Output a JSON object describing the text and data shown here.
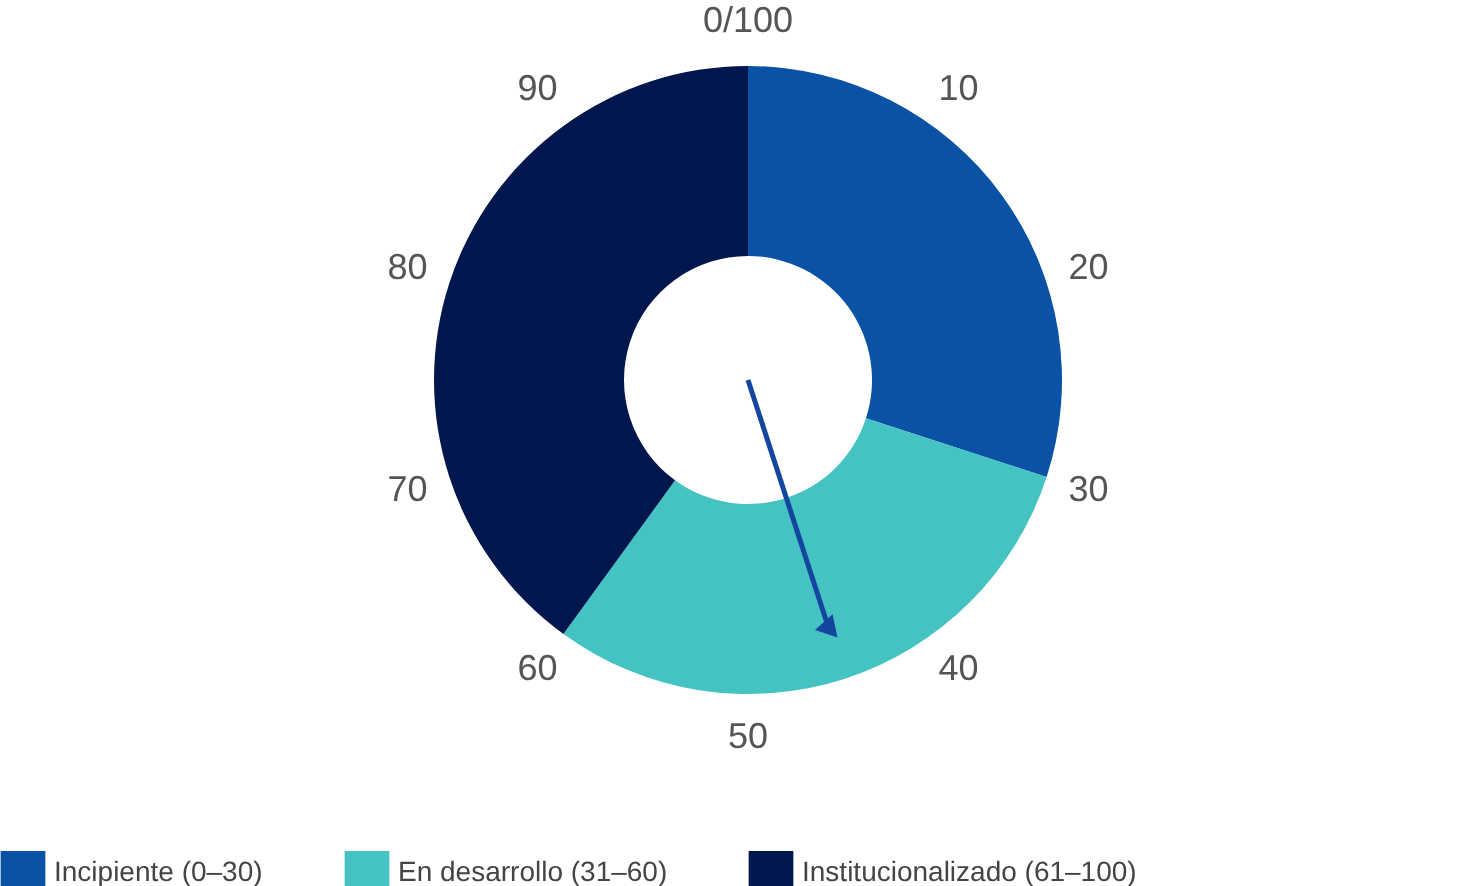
{
  "chart_data": {
    "type": "donut",
    "categories": [
      "Incipiente (0–30)",
      "En desarrollo (31–60)",
      "Institucionalizado (61–100)"
    ],
    "values": [
      30,
      30,
      40
    ],
    "colors": [
      "#0a52a5",
      "#45c3c3",
      "#00174d"
    ],
    "needle": "En desarrollo (31–60)",
    "legend": "bottom",
    "annotations": [
      "0/100",
      "10",
      "20",
      "30",
      "40",
      "50",
      "60",
      "70",
      "80",
      "90"
    ]
  }
}
